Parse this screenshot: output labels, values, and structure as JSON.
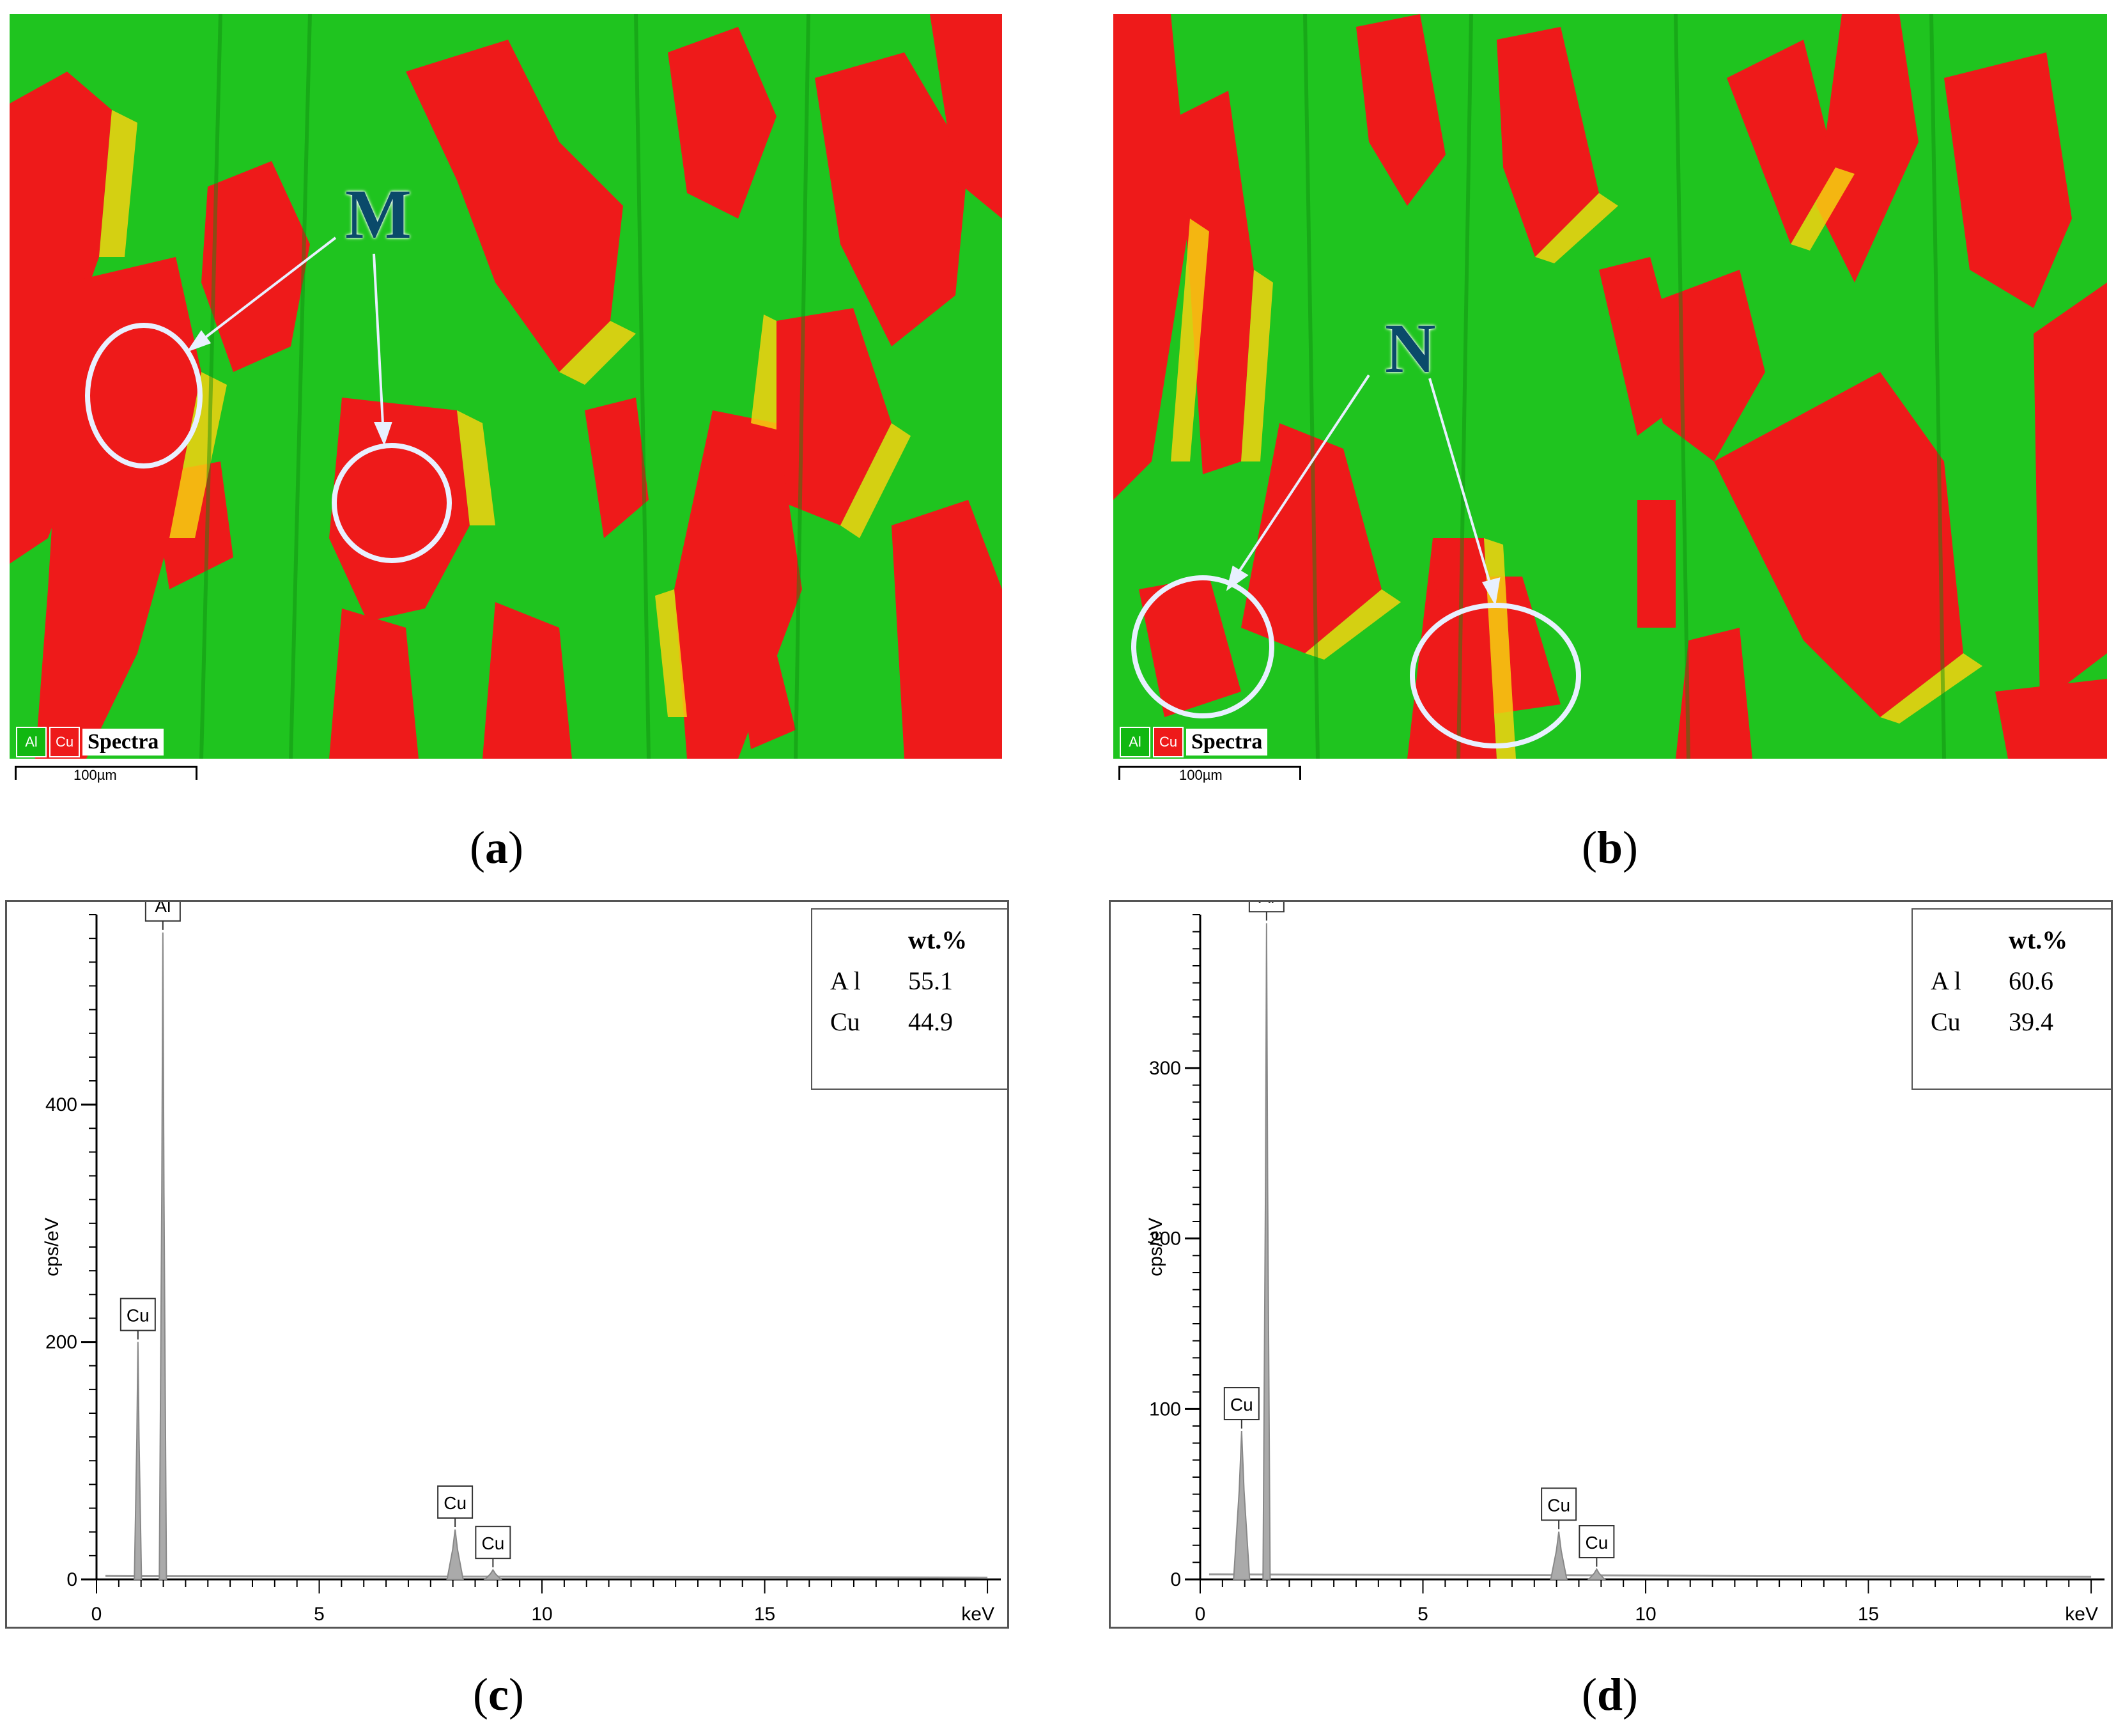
{
  "panels": {
    "a": {
      "label_letter": "a",
      "marker": "M",
      "legend": [
        "Al",
        "Cu",
        "Spectra"
      ],
      "scale": "100µm"
    },
    "b": {
      "label_letter": "b",
      "marker": "N",
      "legend": [
        "Al",
        "Cu",
        "Spectra"
      ],
      "scale": "100µm"
    },
    "c": {
      "label_letter": "c"
    },
    "d": {
      "label_letter": "d"
    }
  },
  "colors": {
    "al_phase": "#22c422",
    "cu_phase": "#ee1a1a",
    "intermediate": "#f5d210",
    "marker": "#0a4a6a",
    "peak": "#999999"
  },
  "chart_data": [
    {
      "type": "line",
      "panel": "c",
      "ylabel": "cps/eV",
      "xlabel": "keV",
      "xlim": [
        0,
        20.3
      ],
      "ylim": [
        0,
        560
      ],
      "x_ticks": [
        "0",
        "5",
        "10",
        "15"
      ],
      "y_ticks": [
        "0",
        "200",
        "400"
      ],
      "peaks": [
        {
          "element": "Cu",
          "x": 0.93,
          "y": 200
        },
        {
          "element": "Al",
          "x": 1.49,
          "y": 545
        },
        {
          "element": "Cu",
          "x": 8.05,
          "y": 42
        },
        {
          "element": "Cu",
          "x": 8.9,
          "y": 8
        }
      ],
      "table": {
        "header": "wt.%",
        "rows": [
          {
            "element": "A l",
            "value": "55.1"
          },
          {
            "element": "Cu",
            "value": "44.9"
          }
        ]
      }
    },
    {
      "type": "line",
      "panel": "d",
      "ylabel": "cps/eV",
      "xlabel": "keV",
      "xlim": [
        0,
        20.3
      ],
      "ylim": [
        0,
        390
      ],
      "x_ticks": [
        "0",
        "5",
        "10",
        "15"
      ],
      "y_ticks": [
        "0",
        "100",
        "200",
        "300"
      ],
      "peaks": [
        {
          "element": "Cu",
          "x": 0.93,
          "y": 87
        },
        {
          "element": "Al",
          "x": 1.49,
          "y": 385
        },
        {
          "element": "Cu",
          "x": 8.05,
          "y": 28
        },
        {
          "element": "Cu",
          "x": 8.9,
          "y": 6
        }
      ],
      "table": {
        "header": "wt.%",
        "rows": [
          {
            "element": "A l",
            "value": "60.6"
          },
          {
            "element": "Cu",
            "value": "39.4"
          }
        ]
      }
    }
  ]
}
